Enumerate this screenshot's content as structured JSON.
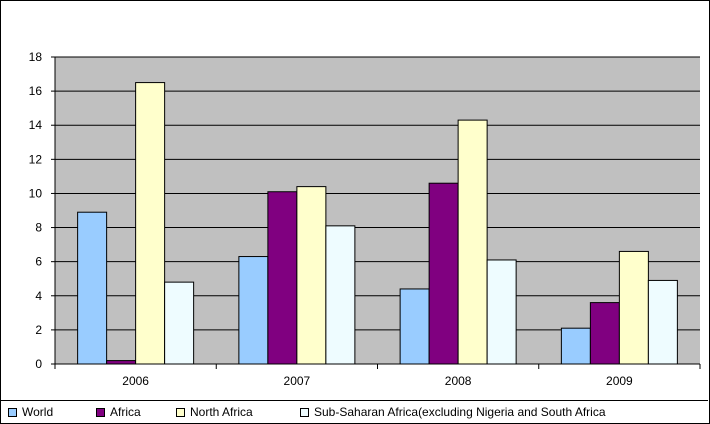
{
  "chart_data": {
    "type": "bar",
    "categories": [
      "2006",
      "2007",
      "2008",
      "2009"
    ],
    "series": [
      {
        "name": "World",
        "values": [
          8.9,
          6.3,
          4.4,
          2.1
        ],
        "color": "#99ccff"
      },
      {
        "name": "Africa",
        "values": [
          0.2,
          10.1,
          10.6,
          3.6
        ],
        "color": "#800080"
      },
      {
        "name": "North Africa",
        "values": [
          16.5,
          10.4,
          14.3,
          6.6
        ],
        "color": "#ffffcc"
      },
      {
        "name": "Sub-Saharan Africa(excluding Nigeria and South Africa",
        "values": [
          4.8,
          8.1,
          6.1,
          4.9
        ],
        "color": "#eefcff"
      }
    ],
    "yticks": [
      "0",
      "2",
      "4",
      "6",
      "8",
      "10",
      "12",
      "14",
      "16",
      "18"
    ],
    "ylim": [
      0,
      18
    ],
    "grid": true,
    "plot_background": "#c0c0c0",
    "legend_position": "bottom"
  }
}
